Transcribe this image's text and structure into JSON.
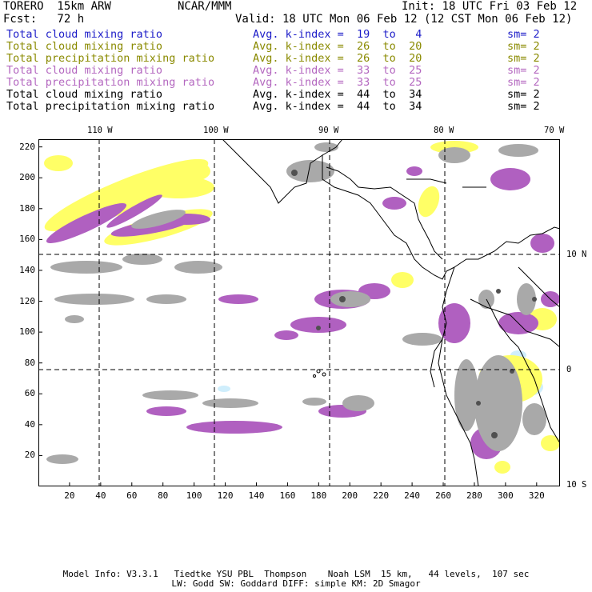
{
  "header": {
    "model": "TORERO  15km ARW",
    "org": "NCAR/MMM",
    "init": "Init: 18 UTC Fri 03 Feb 12",
    "fcst": "Fcst:   72 h",
    "valid": "Valid: 18 UTC Mon 06 Feb 12 (12 CST Mon 06 Feb 12)"
  },
  "legend": [
    {
      "name": "Total cloud mixing ratio",
      "kindex": "Avg. k-index =  19  to   4",
      "sm": "sm= 2",
      "color": "#1c1cc8"
    },
    {
      "name": "Total cloud mixing ratio",
      "kindex": "Avg. k-index =  26  to  20",
      "sm": "sm= 2",
      "color": "#8a8a00"
    },
    {
      "name": "Total precipitation mixing ratio",
      "kindex": "Avg. k-index =  26  to  20",
      "sm": "sm= 2",
      "color": "#8a8a00"
    },
    {
      "name": "Total cloud mixing ratio",
      "kindex": "Avg. k-index =  33  to  25",
      "sm": "sm= 2",
      "color": "#b468c0"
    },
    {
      "name": "Total precipitation mixing ratio",
      "kindex": "Avg. k-index =  33  to  25",
      "sm": "sm= 2",
      "color": "#b468c0"
    },
    {
      "name": "Total cloud mixing ratio",
      "kindex": "Avg. k-index =  44  to  34",
      "sm": "sm= 2",
      "color": "#000000"
    },
    {
      "name": "Total precipitation mixing ratio",
      "kindex": "Avg. k-index =  44  to  34",
      "sm": "sm= 2",
      "color": "#000000"
    }
  ],
  "map": {
    "grid_x_ticks": [
      "20",
      "40",
      "60",
      "80",
      "100",
      "120",
      "140",
      "160",
      "180",
      "200",
      "220",
      "240",
      "260",
      "280",
      "300",
      "320"
    ],
    "grid_y_ticks": [
      "20",
      "40",
      "60",
      "80",
      "100",
      "120",
      "140",
      "160",
      "180",
      "200",
      "220"
    ],
    "lon_labels": [
      "110 W",
      "100 W",
      "90 W",
      "80 W",
      "70 W"
    ],
    "lat_labels": [
      "10 N",
      "0",
      "10 S"
    ],
    "colors": {
      "land_outline": "#000000",
      "cloud_gray": "#a9a9a9",
      "cloud_dark": "#505050",
      "yellow": "#ffff66",
      "purple": "#b060c0",
      "lightblue": "#cfeefc"
    }
  },
  "footer": {
    "line1": "Model Info: V3.3.1   Tiedtke YSU PBL  Thompson    Noah LSM  15 km,   44 levels,  107 sec",
    "line2": "LW: Godd SW: Goddard DIFF: simple KM: 2D Smagor"
  }
}
